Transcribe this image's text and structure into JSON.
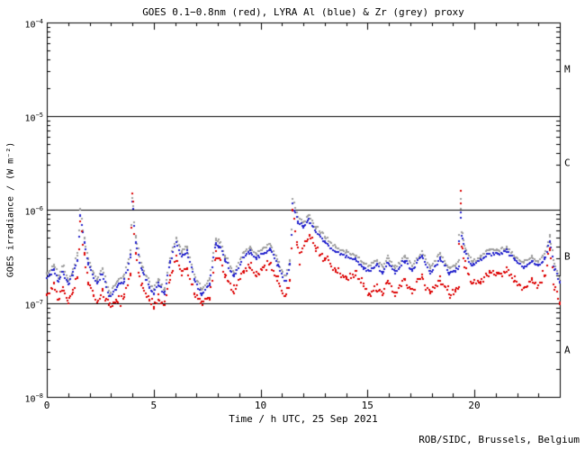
{
  "credit": "ROB/SIDC, Brussels, Belgium",
  "chart_data": {
    "type": "scatter",
    "title": "GOES 0.1−0.8nm (red), LYRA Al (blue) & Zr (grey) proxy",
    "xlabel": "Time / h UTC, 25 Sep 2021",
    "ylabel": "GOES irradiance / (W m⁻²)",
    "xlim": [
      0,
      24
    ],
    "x_major_ticks": [
      0,
      5,
      10,
      15,
      20
    ],
    "x_minor_step_h": 1,
    "y_log10_range": [
      -8,
      -4
    ],
    "y_decades": [
      -4,
      -5,
      -6,
      -7,
      -8
    ],
    "grid": "off",
    "hlines": [
      1e-05,
      1e-06,
      1e-07
    ],
    "class_bands": [
      {
        "label": "M",
        "log10_range": [
          -5,
          -4
        ]
      },
      {
        "label": "C",
        "log10_range": [
          -6,
          -5
        ]
      },
      {
        "label": "B",
        "log10_range": [
          -7,
          -6
        ]
      },
      {
        "label": "A",
        "log10_range": [
          -8,
          -7
        ]
      }
    ],
    "colors": {
      "axis": "#000000",
      "background": "#ffffff"
    },
    "series": [
      {
        "name": "GOES 0.1-0.8nm",
        "color": "#dd0000",
        "points": [
          [
            0.0,
            1.25e-07
          ],
          [
            0.35,
            1.5e-07
          ],
          [
            0.55,
            1.1e-07
          ],
          [
            0.75,
            1.45e-07
          ],
          [
            1.0,
            1e-07
          ],
          [
            1.2,
            1.3e-07
          ],
          [
            1.44,
            1.9e-07
          ],
          [
            1.55,
            7.5e-07
          ],
          [
            1.75,
            3.3e-07
          ],
          [
            1.95,
            1.7e-07
          ],
          [
            2.2,
            1.2e-07
          ],
          [
            2.35,
            1e-07
          ],
          [
            2.6,
            1.35e-07
          ],
          [
            2.95,
            9.5e-08
          ],
          [
            3.3,
            1.05e-07
          ],
          [
            3.6,
            1.15e-07
          ],
          [
            3.93,
            2.1e-07
          ],
          [
            4.0,
            1.45e-06
          ],
          [
            4.15,
            3.4e-07
          ],
          [
            4.45,
            1.5e-07
          ],
          [
            4.8,
            1.05e-07
          ],
          [
            5.0,
            9e-08
          ],
          [
            5.2,
            1.15e-07
          ],
          [
            5.5,
            9.5e-08
          ],
          [
            5.75,
            1.8e-07
          ],
          [
            6.05,
            3.1e-07
          ],
          [
            6.3,
            2.1e-07
          ],
          [
            6.55,
            2.4e-07
          ],
          [
            6.9,
            1.25e-07
          ],
          [
            7.25,
            1e-07
          ],
          [
            7.6,
            1.15e-07
          ],
          [
            7.9,
            3.3e-07
          ],
          [
            8.1,
            2.9e-07
          ],
          [
            8.35,
            2e-07
          ],
          [
            8.75,
            1.3e-07
          ],
          [
            9.2,
            2.2e-07
          ],
          [
            9.5,
            2.5e-07
          ],
          [
            9.8,
            2.1e-07
          ],
          [
            10.1,
            2.4e-07
          ],
          [
            10.45,
            2.7e-07
          ],
          [
            10.8,
            1.8e-07
          ],
          [
            11.15,
            1.2e-07
          ],
          [
            11.38,
            1.8e-07
          ],
          [
            11.5,
            9.8e-07
          ],
          [
            11.7,
            4.5e-07
          ],
          [
            11.85,
            3e-07
          ],
          [
            12.1,
            4.8e-07
          ],
          [
            12.3,
            5.6e-07
          ],
          [
            12.6,
            3.9e-07
          ],
          [
            13.0,
            3e-07
          ],
          [
            13.5,
            2.3e-07
          ],
          [
            14.0,
            1.8e-07
          ],
          [
            14.45,
            2.1e-07
          ],
          [
            14.8,
            1.5e-07
          ],
          [
            15.1,
            1.25e-07
          ],
          [
            15.45,
            1.5e-07
          ],
          [
            15.7,
            1.2e-07
          ],
          [
            15.95,
            1.7e-07
          ],
          [
            16.3,
            1.25e-07
          ],
          [
            16.75,
            1.8e-07
          ],
          [
            17.1,
            1.3e-07
          ],
          [
            17.55,
            2e-07
          ],
          [
            17.95,
            1.25e-07
          ],
          [
            18.4,
            1.8e-07
          ],
          [
            18.8,
            1.25e-07
          ],
          [
            19.1,
            1.35e-07
          ],
          [
            19.27,
            1.5e-07
          ],
          [
            19.35,
            1.75e-06
          ],
          [
            19.43,
            4e-07
          ],
          [
            19.55,
            2.6e-07
          ],
          [
            19.9,
            1.6e-07
          ],
          [
            20.3,
            1.8e-07
          ],
          [
            20.7,
            2.1e-07
          ],
          [
            21.1,
            2e-07
          ],
          [
            21.5,
            2.2e-07
          ],
          [
            21.9,
            1.8e-07
          ],
          [
            22.3,
            1.4e-07
          ],
          [
            22.7,
            1.7e-07
          ],
          [
            23.0,
            1.5e-07
          ],
          [
            23.3,
            1.9e-07
          ],
          [
            23.55,
            3.9e-07
          ],
          [
            23.75,
            1.5e-07
          ],
          [
            24.0,
            1.05e-07
          ]
        ]
      },
      {
        "name": "LYRA Al proxy",
        "color": "#2222cc",
        "points": [
          [
            0.0,
            1.9e-07
          ],
          [
            0.35,
            2.3e-07
          ],
          [
            0.55,
            1.7e-07
          ],
          [
            0.75,
            2.2e-07
          ],
          [
            1.0,
            1.55e-07
          ],
          [
            1.2,
            2e-07
          ],
          [
            1.44,
            2.9e-07
          ],
          [
            1.55,
            9e-07
          ],
          [
            1.75,
            4.5e-07
          ],
          [
            1.95,
            2.6e-07
          ],
          [
            2.2,
            1.9e-07
          ],
          [
            2.35,
            1.6e-07
          ],
          [
            2.6,
            2.1e-07
          ],
          [
            2.95,
            1.15e-07
          ],
          [
            3.3,
            1.5e-07
          ],
          [
            3.6,
            1.7e-07
          ],
          [
            3.93,
            3.2e-07
          ],
          [
            4.0,
            1.25e-06
          ],
          [
            4.15,
            4.6e-07
          ],
          [
            4.45,
            2.2e-07
          ],
          [
            4.8,
            1.5e-07
          ],
          [
            5.0,
            1.25e-07
          ],
          [
            5.2,
            1.6e-07
          ],
          [
            5.5,
            1.25e-07
          ],
          [
            5.75,
            2.6e-07
          ],
          [
            6.05,
            4.5e-07
          ],
          [
            6.3,
            3.2e-07
          ],
          [
            6.55,
            3.6e-07
          ],
          [
            6.9,
            1.8e-07
          ],
          [
            7.25,
            1.25e-07
          ],
          [
            7.6,
            1.6e-07
          ],
          [
            7.9,
            4.3e-07
          ],
          [
            8.1,
            4e-07
          ],
          [
            8.35,
            2.9e-07
          ],
          [
            8.75,
            1.9e-07
          ],
          [
            9.2,
            3.1e-07
          ],
          [
            9.5,
            3.5e-07
          ],
          [
            9.8,
            3e-07
          ],
          [
            10.1,
            3.4e-07
          ],
          [
            10.45,
            3.8e-07
          ],
          [
            10.8,
            2.6e-07
          ],
          [
            11.15,
            1.7e-07
          ],
          [
            11.38,
            2.6e-07
          ],
          [
            11.5,
            1.15e-06
          ],
          [
            11.75,
            7.5e-07
          ],
          [
            12.0,
            6.5e-07
          ],
          [
            12.25,
            7.8e-07
          ],
          [
            12.6,
            5.8e-07
          ],
          [
            13.0,
            4.6e-07
          ],
          [
            13.5,
            3.6e-07
          ],
          [
            14.0,
            3.1e-07
          ],
          [
            14.45,
            2.9e-07
          ],
          [
            14.8,
            2.4e-07
          ],
          [
            15.1,
            2.2e-07
          ],
          [
            15.45,
            2.6e-07
          ],
          [
            15.7,
            2.1e-07
          ],
          [
            15.95,
            2.8e-07
          ],
          [
            16.3,
            2.1e-07
          ],
          [
            16.75,
            2.9e-07
          ],
          [
            17.1,
            2.2e-07
          ],
          [
            17.55,
            3.2e-07
          ],
          [
            17.95,
            2.1e-07
          ],
          [
            18.4,
            3e-07
          ],
          [
            18.8,
            2.1e-07
          ],
          [
            19.1,
            2.2e-07
          ],
          [
            19.27,
            2.5e-07
          ],
          [
            19.35,
            9.5e-07
          ],
          [
            19.43,
            5e-07
          ],
          [
            19.55,
            3.6e-07
          ],
          [
            19.9,
            2.5e-07
          ],
          [
            20.3,
            2.9e-07
          ],
          [
            20.7,
            3.4e-07
          ],
          [
            21.1,
            3.3e-07
          ],
          [
            21.5,
            3.6e-07
          ],
          [
            21.9,
            2.9e-07
          ],
          [
            22.3,
            2.4e-07
          ],
          [
            22.7,
            2.8e-07
          ],
          [
            23.0,
            2.5e-07
          ],
          [
            23.3,
            3e-07
          ],
          [
            23.55,
            4.6e-07
          ],
          [
            23.75,
            2.4e-07
          ],
          [
            24.0,
            1.6e-07
          ]
        ]
      },
      {
        "name": "LYRA Zr proxy",
        "color": "#9e9e9e",
        "points": [
          [
            0.0,
            2.1e-07
          ],
          [
            0.35,
            2.6e-07
          ],
          [
            0.55,
            1.9e-07
          ],
          [
            0.75,
            2.5e-07
          ],
          [
            1.0,
            1.75e-07
          ],
          [
            1.2,
            2.2e-07
          ],
          [
            1.44,
            3.3e-07
          ],
          [
            1.55,
            1.02e-06
          ],
          [
            1.75,
            5e-07
          ],
          [
            1.95,
            2.9e-07
          ],
          [
            2.2,
            2.1e-07
          ],
          [
            2.35,
            1.8e-07
          ],
          [
            2.6,
            2.4e-07
          ],
          [
            2.95,
            1.3e-07
          ],
          [
            3.3,
            1.7e-07
          ],
          [
            3.6,
            1.9e-07
          ],
          [
            3.93,
            3.6e-07
          ],
          [
            4.0,
            1.32e-06
          ],
          [
            4.15,
            5.2e-07
          ],
          [
            4.45,
            2.5e-07
          ],
          [
            4.8,
            1.7e-07
          ],
          [
            5.0,
            1.4e-07
          ],
          [
            5.2,
            1.8e-07
          ],
          [
            5.5,
            1.4e-07
          ],
          [
            5.75,
            2.9e-07
          ],
          [
            6.05,
            5e-07
          ],
          [
            6.3,
            3.6e-07
          ],
          [
            6.55,
            4e-07
          ],
          [
            6.9,
            2e-07
          ],
          [
            7.25,
            1.4e-07
          ],
          [
            7.6,
            1.8e-07
          ],
          [
            7.9,
            4.8e-07
          ],
          [
            8.1,
            4.5e-07
          ],
          [
            8.35,
            3.2e-07
          ],
          [
            8.75,
            2.1e-07
          ],
          [
            9.2,
            3.5e-07
          ],
          [
            9.5,
            3.9e-07
          ],
          [
            9.8,
            3.4e-07
          ],
          [
            10.1,
            3.8e-07
          ],
          [
            10.45,
            4.3e-07
          ],
          [
            10.8,
            2.9e-07
          ],
          [
            11.15,
            1.9e-07
          ],
          [
            11.38,
            2.9e-07
          ],
          [
            11.5,
            1.3e-06
          ],
          [
            11.75,
            8.4e-07
          ],
          [
            12.0,
            7.3e-07
          ],
          [
            12.25,
            8.7e-07
          ],
          [
            12.6,
            6.5e-07
          ],
          [
            13.0,
            5.2e-07
          ],
          [
            13.5,
            4e-07
          ],
          [
            14.0,
            3.5e-07
          ],
          [
            14.45,
            3.2e-07
          ],
          [
            14.8,
            2.7e-07
          ],
          [
            15.1,
            2.5e-07
          ],
          [
            15.45,
            2.9e-07
          ],
          [
            15.7,
            2.4e-07
          ],
          [
            15.95,
            3.1e-07
          ],
          [
            16.3,
            2.4e-07
          ],
          [
            16.75,
            3.2e-07
          ],
          [
            17.1,
            2.5e-07
          ],
          [
            17.55,
            3.6e-07
          ],
          [
            17.95,
            2.4e-07
          ],
          [
            18.4,
            3.4e-07
          ],
          [
            18.8,
            2.4e-07
          ],
          [
            19.1,
            2.5e-07
          ],
          [
            19.27,
            2.8e-07
          ],
          [
            19.35,
            1.25e-06
          ],
          [
            19.43,
            5.6e-07
          ],
          [
            19.55,
            4e-07
          ],
          [
            19.9,
            2.8e-07
          ],
          [
            20.3,
            3.2e-07
          ],
          [
            20.7,
            3.8e-07
          ],
          [
            21.1,
            3.7e-07
          ],
          [
            21.5,
            4e-07
          ],
          [
            21.9,
            3.2e-07
          ],
          [
            22.3,
            2.7e-07
          ],
          [
            22.7,
            3.1e-07
          ],
          [
            23.0,
            2.8e-07
          ],
          [
            23.3,
            3.4e-07
          ],
          [
            23.55,
            5.3e-07
          ],
          [
            23.75,
            2.7e-07
          ],
          [
            24.0,
            1.8e-07
          ]
        ]
      }
    ]
  }
}
